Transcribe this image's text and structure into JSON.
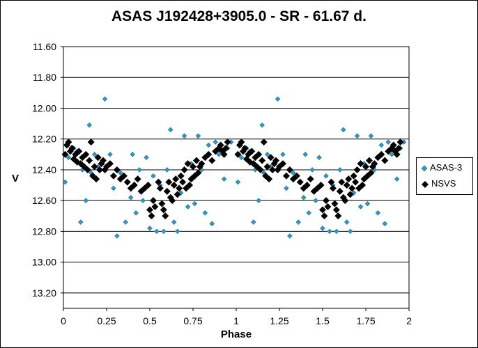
{
  "chart_data": {
    "type": "scatter",
    "title": "ASAS J192428+3905.0  - SR - 61.67 d.",
    "xlabel": "Phase",
    "ylabel": "V",
    "xlim": [
      0,
      2
    ],
    "ylim": [
      11.6,
      13.3
    ],
    "y_inverted": true,
    "grid": "horizontal",
    "legend_position": "right",
    "x_ticks": [
      "0",
      "0.25",
      "0.5",
      "0.75",
      "1",
      "1.25",
      "1.5",
      "1.75",
      "2"
    ],
    "y_ticks": [
      "11.60",
      "11.80",
      "12.00",
      "12.20",
      "12.40",
      "12.60",
      "12.80",
      "13.00",
      "13.20"
    ],
    "series": [
      {
        "name": "ASAS-3",
        "color": "#3399cc",
        "marker": "diamond-small",
        "x": [
          0.01,
          0.03,
          0.06,
          0.08,
          0.1,
          0.11,
          0.13,
          0.15,
          0.16,
          0.18,
          0.2,
          0.24,
          0.27,
          0.29,
          0.31,
          0.33,
          0.36,
          0.39,
          0.4,
          0.42,
          0.44,
          0.46,
          0.48,
          0.5,
          0.52,
          0.54,
          0.56,
          0.58,
          0.6,
          0.62,
          0.64,
          0.66,
          0.68,
          0.7,
          0.72,
          0.74,
          0.76,
          0.78,
          0.8,
          0.82,
          0.84,
          0.86,
          0.88,
          0.9,
          0.93,
          0.95,
          0.97
        ],
        "y": [
          12.48,
          12.32,
          12.26,
          12.28,
          12.74,
          12.4,
          12.6,
          12.11,
          12.42,
          12.3,
          12.38,
          11.94,
          12.3,
          12.52,
          12.83,
          12.42,
          12.74,
          12.58,
          12.3,
          12.68,
          12.4,
          12.6,
          12.32,
          12.78,
          12.44,
          12.8,
          12.5,
          12.8,
          12.4,
          12.14,
          12.74,
          12.8,
          12.55,
          12.18,
          12.64,
          12.36,
          12.62,
          12.18,
          12.4,
          12.68,
          12.24,
          12.75,
          12.22,
          12.3,
          12.46,
          12.26,
          12.22
        ]
      },
      {
        "name": "NSVS",
        "color": "#000000",
        "marker": "diamond",
        "x": [
          0.01,
          0.02,
          0.03,
          0.04,
          0.05,
          0.06,
          0.07,
          0.08,
          0.09,
          0.1,
          0.11,
          0.12,
          0.13,
          0.14,
          0.15,
          0.16,
          0.17,
          0.18,
          0.19,
          0.2,
          0.21,
          0.22,
          0.23,
          0.24,
          0.25,
          0.27,
          0.29,
          0.31,
          0.33,
          0.35,
          0.37,
          0.39,
          0.41,
          0.43,
          0.45,
          0.47,
          0.49,
          0.5,
          0.51,
          0.52,
          0.53,
          0.55,
          0.56,
          0.57,
          0.58,
          0.59,
          0.6,
          0.61,
          0.62,
          0.63,
          0.64,
          0.65,
          0.66,
          0.67,
          0.68,
          0.69,
          0.7,
          0.71,
          0.72,
          0.73,
          0.74,
          0.75,
          0.76,
          0.77,
          0.78,
          0.79,
          0.8,
          0.82,
          0.84,
          0.86,
          0.88,
          0.9,
          0.91,
          0.92,
          0.93,
          0.94,
          0.95
        ],
        "y": [
          12.3,
          12.24,
          12.22,
          12.28,
          12.26,
          12.33,
          12.3,
          12.35,
          12.28,
          12.36,
          12.32,
          12.38,
          12.3,
          12.4,
          12.34,
          12.22,
          12.44,
          12.38,
          12.46,
          12.32,
          12.4,
          12.36,
          12.34,
          12.4,
          12.38,
          12.36,
          12.44,
          12.4,
          12.46,
          12.44,
          12.48,
          12.52,
          12.5,
          12.46,
          12.54,
          12.52,
          12.5,
          12.66,
          12.7,
          12.6,
          12.64,
          12.48,
          12.52,
          12.62,
          12.66,
          12.7,
          12.54,
          12.48,
          12.58,
          12.6,
          12.5,
          12.46,
          12.56,
          12.52,
          12.44,
          12.48,
          12.4,
          12.52,
          12.36,
          12.5,
          12.46,
          12.38,
          12.44,
          12.34,
          12.42,
          12.38,
          12.36,
          12.32,
          12.3,
          12.34,
          12.28,
          12.26,
          12.24,
          12.28,
          12.3,
          12.26,
          12.22
        ]
      }
    ]
  }
}
